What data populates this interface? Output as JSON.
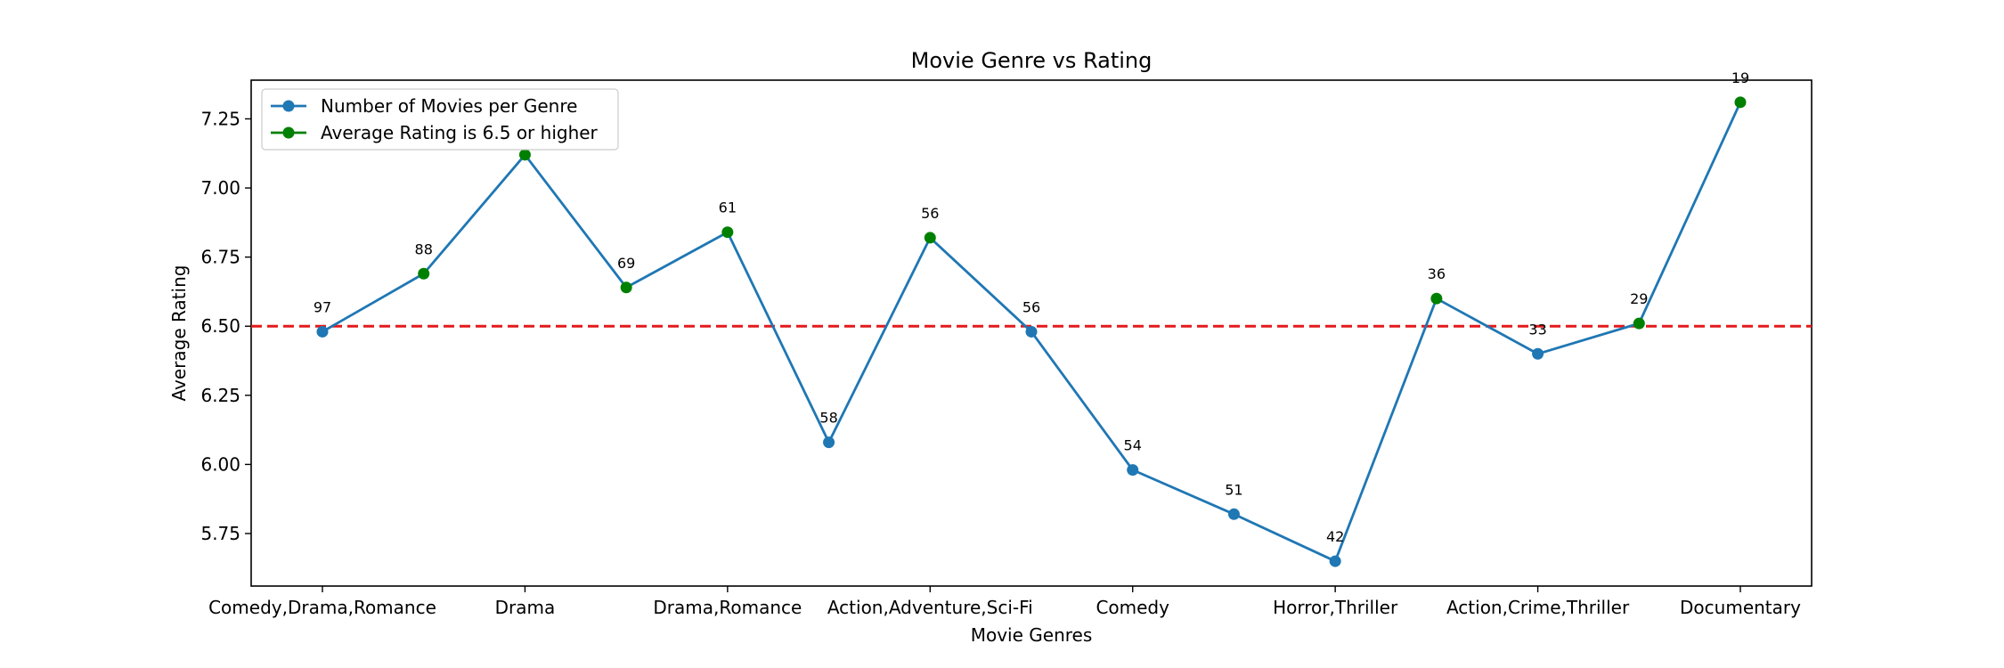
{
  "chart_data": {
    "type": "line",
    "title": "Movie Genre vs Rating",
    "xlabel": "Movie Genres",
    "ylabel": "Average Rating",
    "x_tick_labels": [
      "Comedy,Drama,Romance",
      "Drama",
      "Drama,Romance",
      "Action,Adventure,Sci-Fi",
      "Comedy",
      "Horror,Thriller",
      "Action,Crime,Thriller",
      "Documentary"
    ],
    "y_ticks": [
      5.75,
      6.0,
      6.25,
      6.5,
      6.75,
      7.0,
      7.25
    ],
    "y_tick_labels": [
      "5.75",
      "6.00",
      "6.25",
      "6.50",
      "6.75",
      "7.00",
      "7.25"
    ],
    "ylim": [
      5.56,
      7.39
    ],
    "threshold": {
      "value": 6.5,
      "color": "#e31a1c",
      "style": "dashed"
    },
    "series": [
      {
        "name": "Number of Movies per Genre",
        "color": "#1f77b4",
        "values": [
          6.48,
          6.69,
          7.12,
          6.64,
          6.84,
          6.08,
          6.82,
          6.48,
          5.98,
          5.82,
          5.65,
          6.6,
          6.4,
          6.51,
          7.31
        ],
        "counts": [
          "97",
          "88",
          "",
          "69",
          "61",
          "58",
          "56",
          "56",
          "54",
          "51",
          "42",
          "36",
          "33",
          "29",
          "19"
        ]
      }
    ],
    "highlight_legend": "Average Rating is 6.5 or higher",
    "highlight_color": "#008000",
    "highlight_threshold": 6.5,
    "legend_position": "upper left",
    "grid": false
  }
}
